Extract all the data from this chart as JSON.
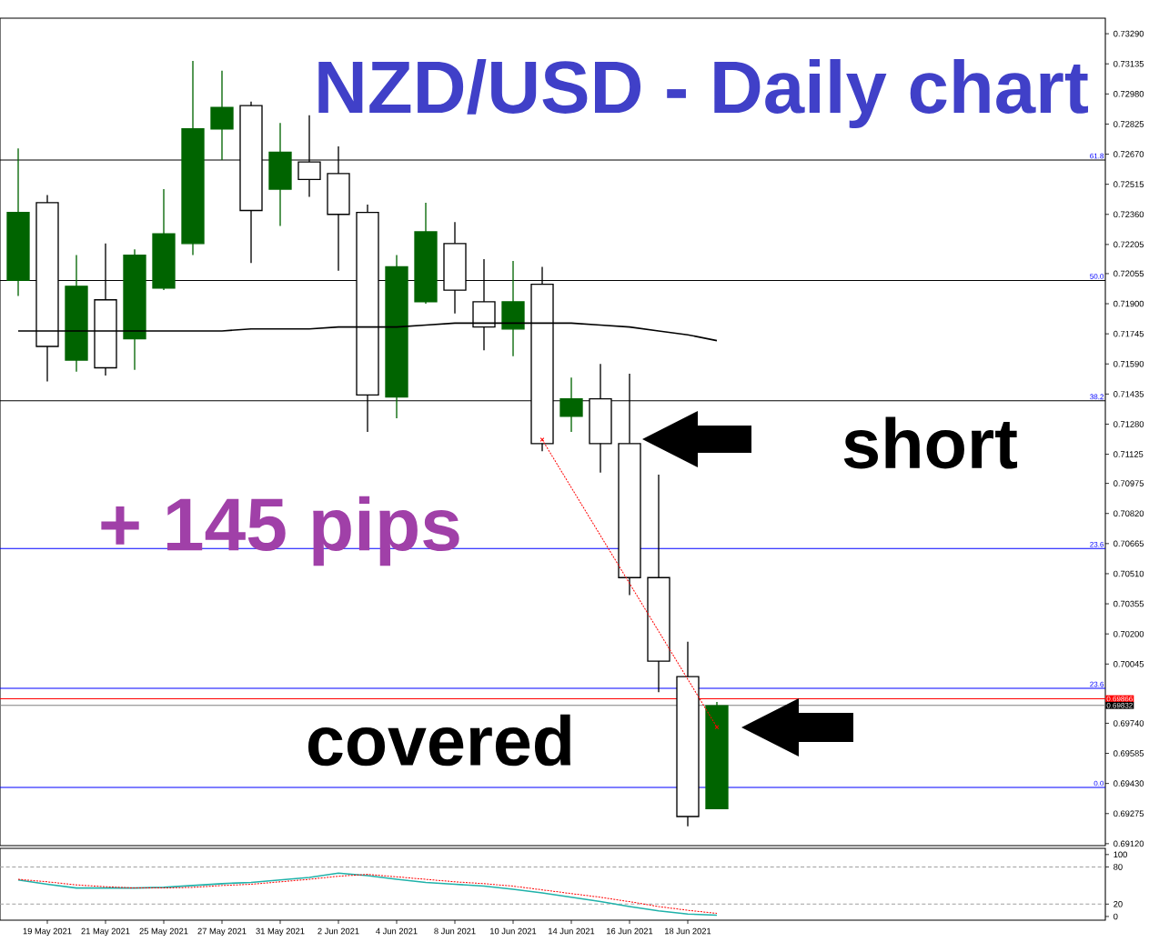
{
  "chart_data": [
    {
      "type": "candlestick",
      "title": "NZD/USD -  Daily chart",
      "categories": [
        null,
        null,
        null,
        null,
        null,
        null,
        null,
        null,
        null,
        null,
        null,
        null,
        null,
        null,
        null,
        null,
        null,
        null,
        null,
        null,
        null,
        null,
        null,
        null,
        null
      ],
      "ohlc": [
        [
          0.7202,
          0.727,
          0.7194,
          0.7237
        ],
        [
          0.7242,
          0.7246,
          0.715,
          0.7168
        ],
        [
          0.7161,
          0.7215,
          0.7155,
          0.7199
        ],
        [
          0.7192,
          0.7221,
          0.7153,
          0.7157
        ],
        [
          0.7172,
          0.7218,
          0.7156,
          0.7215
        ],
        [
          0.7198,
          0.7249,
          0.7197,
          0.7226
        ],
        [
          0.7221,
          0.7315,
          0.7215,
          0.728
        ],
        [
          0.728,
          0.731,
          0.7264,
          0.7291
        ],
        [
          0.7292,
          0.7294,
          0.7211,
          0.7238
        ],
        [
          0.7249,
          0.7283,
          0.723,
          0.7268
        ],
        [
          0.7263,
          0.7287,
          0.7245,
          0.7254
        ],
        [
          0.7257,
          0.7271,
          0.7207,
          0.7236
        ],
        [
          0.7237,
          0.7241,
          0.7124,
          0.7143
        ],
        [
          0.7142,
          0.7215,
          0.7131,
          0.7209
        ],
        [
          0.7191,
          0.7242,
          0.719,
          0.7227
        ],
        [
          0.7221,
          0.7232,
          0.7185,
          0.7197
        ],
        [
          0.7191,
          0.7213,
          0.7166,
          0.7178
        ],
        [
          0.7177,
          0.7212,
          0.7163,
          0.7191
        ],
        [
          0.72,
          0.7209,
          0.7114,
          0.7118
        ],
        [
          0.7132,
          0.7152,
          0.7124,
          0.7141
        ],
        [
          0.7141,
          0.7159,
          0.7103,
          0.7118
        ],
        [
          0.7118,
          0.7154,
          0.704,
          0.7049
        ],
        [
          0.7049,
          0.7102,
          0.699,
          0.7006
        ],
        [
          0.6998,
          0.7016,
          0.6921,
          0.6926
        ],
        [
          0.693,
          0.6985,
          0.693,
          0.6983
        ]
      ],
      "colors": [
        "#006400",
        "#ffffff",
        "#006400",
        "#ffffff",
        "#006400",
        "#006400",
        "#006400",
        "#006400",
        "#ffffff",
        "#006400",
        "#ffffff",
        "#ffffff",
        "#ffffff",
        "#006400",
        "#006400",
        "#ffffff",
        "#ffffff",
        "#006400",
        "#ffffff",
        "#006400",
        "#ffffff",
        "#ffffff",
        "#ffffff",
        "#ffffff",
        "#006400"
      ],
      "series": [
        {
          "type": "line",
          "color": "#000000",
          "values": [
            0.7176,
            0.7176,
            0.7176,
            0.7176,
            0.7176,
            0.7176,
            0.7176,
            0.7176,
            0.7177,
            0.7177,
            0.7177,
            0.7178,
            0.7178,
            0.7178,
            0.7179,
            0.718,
            0.718,
            0.718,
            0.718,
            0.718,
            0.7179,
            0.7178,
            0.7176,
            0.7174,
            0.7171
          ]
        },
        {
          "type": "line",
          "color": "#ff0000",
          "line_style": "dotted",
          "marker": "cross",
          "values": [
            null,
            null,
            null,
            null,
            null,
            null,
            null,
            null,
            null,
            null,
            null,
            null,
            null,
            null,
            null,
            null,
            null,
            null,
            0.712,
            null,
            null,
            null,
            null,
            null,
            0.6972
          ]
        }
      ],
      "ylim": [
        0.6911,
        0.7337
      ],
      "yticks": [
        {
          "value": 0.7329,
          "label": "0.73290"
        },
        {
          "value": 0.73135,
          "label": "0.73135"
        },
        {
          "value": 0.7298,
          "label": "0.72980"
        },
        {
          "value": 0.72825,
          "label": "0.72825"
        },
        {
          "value": 0.7267,
          "label": "0.72670"
        },
        {
          "value": 0.72515,
          "label": "0.72515"
        },
        {
          "value": 0.7236,
          "label": "0.72360"
        },
        {
          "value": 0.72205,
          "label": "0.72205"
        },
        {
          "value": 0.72055,
          "label": "0.72055"
        },
        {
          "value": 0.719,
          "label": "0.71900"
        },
        {
          "value": 0.71745,
          "label": "0.71745"
        },
        {
          "value": 0.7159,
          "label": "0.71590"
        },
        {
          "value": 0.71435,
          "label": "0.71435"
        },
        {
          "value": 0.7128,
          "label": "0.71280"
        },
        {
          "value": 0.71125,
          "label": "0.71125"
        },
        {
          "value": 0.70975,
          "label": "0.70975"
        },
        {
          "value": 0.7082,
          "label": "0.70820"
        },
        {
          "value": 0.70665,
          "label": "0.70665"
        },
        {
          "value": 0.7051,
          "label": "0.70510"
        },
        {
          "value": 0.70355,
          "label": "0.70355"
        },
        {
          "value": 0.702,
          "label": "0.70200"
        },
        {
          "value": 0.70045,
          "label": "0.70045"
        },
        {
          "value": 0.6974,
          "label": "0.69740"
        },
        {
          "value": 0.69585,
          "label": "0.69585"
        },
        {
          "value": 0.6943,
          "label": "0.69430"
        },
        {
          "value": 0.69275,
          "label": "0.69275"
        },
        {
          "value": 0.6912,
          "label": "0.69120"
        }
      ],
      "tick_labels": "y",
      "ref_lines": [
        {
          "axis": "y",
          "value": 0.7264,
          "color": "#000000"
        },
        {
          "axis": "y",
          "value": 0.7202,
          "color": "#000000"
        },
        {
          "axis": "y",
          "value": 0.714,
          "color": "#000000"
        },
        {
          "axis": "y",
          "value": 0.7064,
          "color": "#0000ff"
        },
        {
          "axis": "y",
          "value": 0.6992,
          "color": "#0000ff"
        },
        {
          "axis": "y",
          "value": 0.6941,
          "color": "#0000ff"
        },
        {
          "axis": "y",
          "value": 0.69866,
          "label": "0.69866",
          "color": "#ff0000"
        },
        {
          "axis": "y",
          "value": 0.69832,
          "label": "0.69832",
          "color": "#808080"
        }
      ],
      "annotations": [
        "short",
        "+ 145  pips",
        "covered",
        "61.8",
        "50.0",
        "38.2",
        "23.6",
        "23.6",
        "0.0"
      ]
    },
    {
      "type": "line",
      "categories": [
        null,
        "19 May 2021",
        null,
        "21 May 2021",
        null,
        "25 May 2021",
        null,
        "27 May 2021",
        null,
        "31 May 2021",
        null,
        "2 Jun 2021",
        null,
        "4 Jun 2021",
        null,
        "8 Jun 2021",
        null,
        "10 Jun 2021",
        null,
        "14 Jun 2021",
        null,
        "16 Jun 2021",
        null,
        "18 Jun 2021",
        null
      ],
      "series": [
        {
          "color": "#20b2aa",
          "values": [
            59,
            52,
            46,
            46,
            46,
            47,
            50,
            53,
            55,
            59,
            63,
            70,
            66,
            60,
            55,
            52,
            49,
            44,
            38,
            31,
            24,
            16,
            9,
            4,
            2
          ]
        },
        {
          "color": "#ff0000",
          "line_style": "dotted",
          "values": [
            60,
            56,
            51,
            48,
            46,
            46,
            47,
            50,
            52,
            56,
            60,
            65,
            68,
            64,
            60,
            56,
            53,
            49,
            43,
            37,
            31,
            24,
            16,
            10,
            5
          ]
        }
      ],
      "ylim": [
        -6,
        110
      ],
      "yticks": [
        0,
        20,
        80,
        100
      ],
      "ref_lines": [
        {
          "axis": "y",
          "value": 80,
          "color": "#a0a0a0",
          "line_style": "dashed"
        },
        {
          "axis": "y",
          "value": 20,
          "color": "#a0a0a0",
          "line_style": "dashed"
        }
      ]
    }
  ]
}
